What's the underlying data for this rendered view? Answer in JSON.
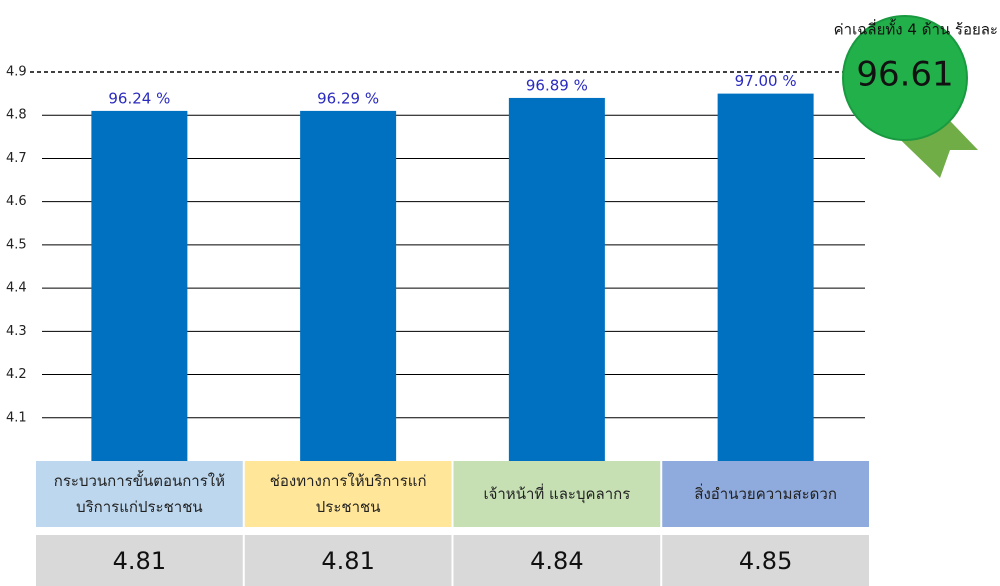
{
  "chart_data": {
    "type": "bar",
    "badge_title": "ค่าเฉลี่ยทั้ง 4 ด้าน ร้อยละ",
    "badge_value": "96.61",
    "categories": [
      "กระบวนการขั้นตอนการให้บริการแก่ประชาชน",
      "ช่องทางการให้บริการแก่ประชาชน",
      "เจ้าหน้าที่ และบุคลากร",
      "สิ่งอำนวยความสะดวก"
    ],
    "values": [
      4.81,
      4.81,
      4.84,
      4.85
    ],
    "percent_labels": [
      "96.24 %",
      "96.29 %",
      "96.89 %",
      "97.00 %"
    ],
    "color": "#0070c0",
    "category_colors": [
      "#bdd7ee",
      "#ffe699",
      "#c6e0b4",
      "#8faadc"
    ],
    "ylim": [
      4.0,
      4.9
    ],
    "yticks": [
      4.1,
      4.2,
      4.3,
      4.4,
      4.5,
      4.6,
      4.7,
      4.8,
      4.9
    ],
    "grid": true
  }
}
